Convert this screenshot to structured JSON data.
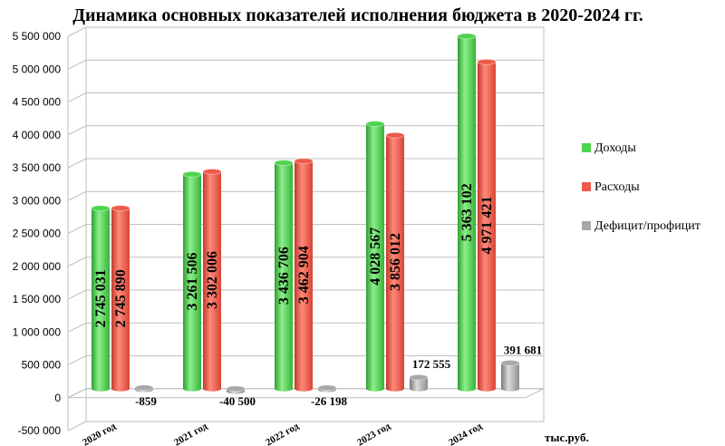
{
  "chart_data": {
    "type": "bar",
    "title": "Динамика основных показателей исполнения бюджета в 2020-2024 гг.",
    "unit_label": "тыс.руб.",
    "categories": [
      "2020 год",
      "2021 год",
      "2022 год",
      "2023 год",
      "2024 год"
    ],
    "series": [
      {
        "name": "Доходы",
        "color": "#4ed44e",
        "values": [
          2745031,
          3261506,
          3436706,
          4028567,
          5363102
        ],
        "labels": [
          "2 745 031",
          "3 261 506",
          "3 436 706",
          "4 028 567",
          "5 363 102"
        ]
      },
      {
        "name": "Расходы",
        "color": "#ef5a4a",
        "values": [
          2745890,
          3302006,
          3462904,
          3856012,
          4971421
        ],
        "labels": [
          "2 745 890",
          "3 302 006",
          "3 462 904",
          "3 856 012",
          "4 971 421"
        ]
      },
      {
        "name": "Дефицит/профицит",
        "color": "#a8a8a8",
        "values": [
          -859,
          -40500,
          -26198,
          172555,
          391681
        ],
        "labels": [
          "-859",
          "-40 500",
          "-26 198",
          "172 555",
          "391 681"
        ]
      }
    ],
    "ylim": [
      -500000,
      5500000
    ],
    "yticks": [
      -500000,
      0,
      500000,
      1000000,
      1500000,
      2000000,
      2500000,
      3000000,
      3500000,
      4000000,
      4500000,
      5000000,
      5500000
    ],
    "ytick_labels": [
      "-500 000",
      "0",
      "500 000",
      "1 000 000",
      "1 500 000",
      "2 000 000",
      "2 500 000",
      "3 000 000",
      "3 500 000",
      "4 000 000",
      "4 500 000",
      "5 000 000",
      "5 500 000"
    ],
    "grid": true,
    "legend_position": "right"
  }
}
